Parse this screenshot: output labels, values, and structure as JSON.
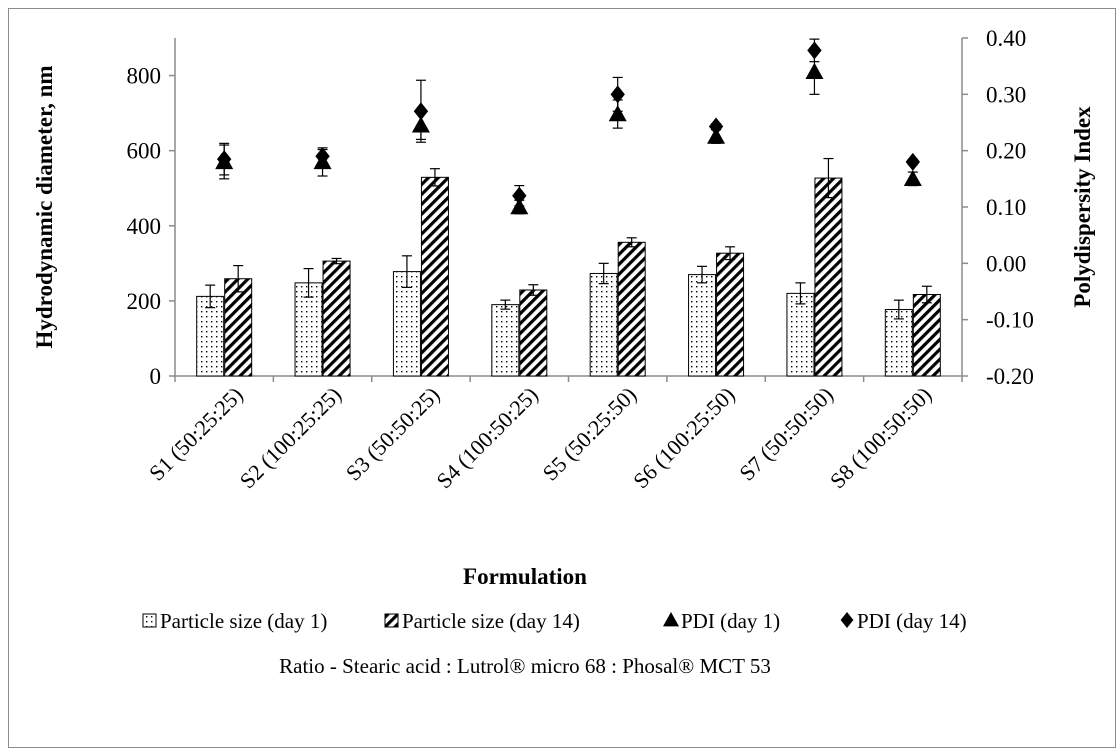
{
  "chart_data": {
    "type": "bar",
    "xlabel": "Formulation",
    "ylabel": "Hydrodynamic diameter, nm",
    "y2label": "Polydispersity Index",
    "ylim": [
      0,
      900
    ],
    "yticks": [
      "0",
      "200",
      "400",
      "600",
      "800"
    ],
    "y2lim": [
      -0.2,
      0.4
    ],
    "y2ticks": [
      "-0.20",
      "-0.10",
      "0.00",
      "0.10",
      "0.20",
      "0.30",
      "0.40"
    ],
    "grid": false,
    "legend_position": "bottom",
    "categories": [
      "S1  (50:25:25)",
      "S2 (100:25:25)",
      "S3  (50:50:25)",
      "S4 (100:50:25)",
      "S5 (50:25:50)",
      "S6 (100:25:50)",
      "S7 (50:50:50)",
      "S8 (100:50:50)"
    ],
    "series": [
      {
        "name": "Particle size (day 1)",
        "kind": "bar",
        "pattern": "dots",
        "axis": "left",
        "values": [
          212,
          248,
          278,
          190,
          273,
          270,
          220,
          177
        ],
        "errors": [
          30,
          38,
          42,
          12,
          27,
          22,
          28,
          25
        ]
      },
      {
        "name": "Particle size (day 14)",
        "kind": "bar",
        "pattern": "diagonal-hatch",
        "axis": "left",
        "values": [
          259,
          306,
          529,
          229,
          356,
          327,
          527,
          217
        ],
        "errors": [
          35,
          7,
          23,
          14,
          12,
          17,
          52,
          22
        ]
      },
      {
        "name": "PDI (day 1)",
        "kind": "marker",
        "marker": "triangle",
        "axis": "right",
        "values": [
          0.18,
          0.18,
          0.245,
          0.1,
          0.265,
          0.225,
          0.34,
          0.15
        ],
        "errors": [
          0.03,
          0.025,
          0.025,
          0.012,
          0.025,
          0.012,
          0.04,
          0.012
        ]
      },
      {
        "name": "PDI (day 14)",
        "kind": "marker",
        "marker": "diamond",
        "axis": "right",
        "values": [
          0.185,
          0.19,
          0.27,
          0.12,
          0.3,
          0.243,
          0.378,
          0.18
        ],
        "errors": [
          0.028,
          0.012,
          0.055,
          0.018,
          0.03,
          0.005,
          0.02,
          0.005
        ]
      }
    ]
  },
  "footnote": "Ratio - Stearic acid : Lutrol® micro 68 : Phosal® MCT 53",
  "colors": {
    "ink": "#000000",
    "axis": "#8c8c8c",
    "bar_fill": "#ffffff"
  }
}
